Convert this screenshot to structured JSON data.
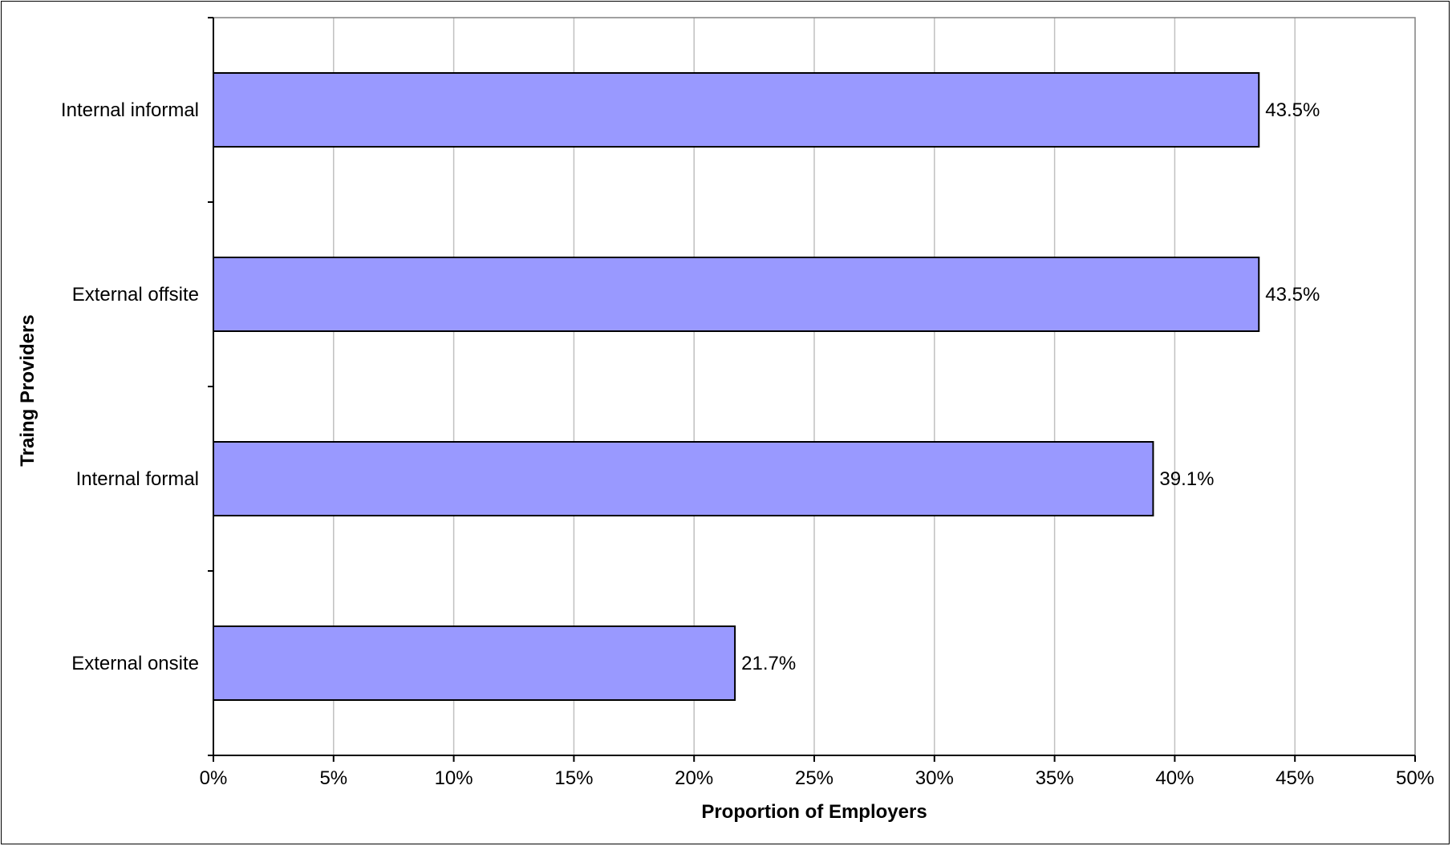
{
  "chart_data": {
    "type": "bar",
    "orientation": "horizontal",
    "title": "",
    "xlabel": "Proportion of Employers",
    "ylabel": "Traing Providers",
    "categories": [
      "Internal informal",
      "External offsite",
      "Internal formal",
      "External onsite"
    ],
    "values": [
      43.5,
      43.5,
      39.1,
      21.7
    ],
    "value_labels": [
      "43.5%",
      "43.5%",
      "39.1%",
      "21.7%"
    ],
    "xlim": [
      0,
      50
    ],
    "x_ticks": [
      0,
      5,
      10,
      15,
      20,
      25,
      30,
      35,
      40,
      45,
      50
    ],
    "x_tick_labels": [
      "0%",
      "5%",
      "10%",
      "15%",
      "20%",
      "25%",
      "30%",
      "35%",
      "40%",
      "45%",
      "50%"
    ],
    "grid": "vertical",
    "legend": "none",
    "colors": {
      "bar_fill": "#9999ff",
      "bar_stroke": "#000000",
      "grid": "#c0c0c0",
      "axis": "#000000",
      "plot_border": "#808080"
    }
  }
}
